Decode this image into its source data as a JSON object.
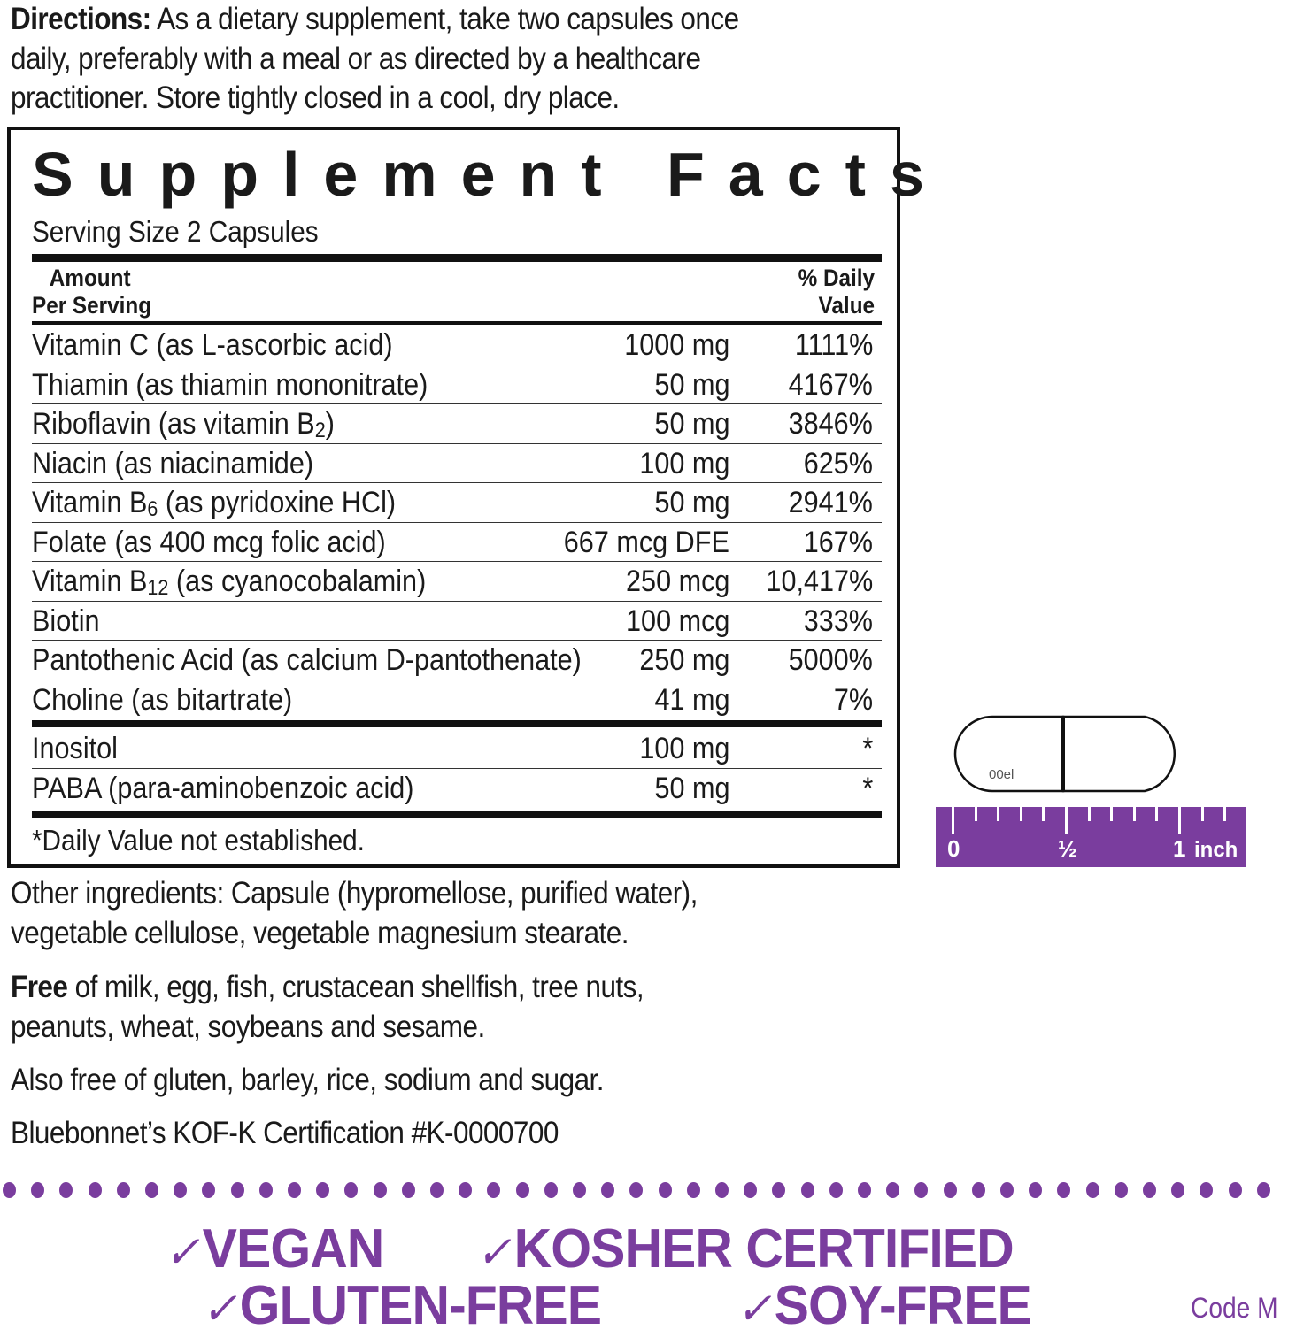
{
  "directions": {
    "label": "Directions:",
    "text_line1": " As a dietary supplement, take two capsules once",
    "text_line2": "daily, preferably with a meal or as directed by a healthcare",
    "text_line3": "practitioner. Store tightly closed in a cool, dry place."
  },
  "facts": {
    "title": "Supplement Facts",
    "serving_size": "Serving Size 2 Capsules",
    "header_amount_1": "Amount",
    "header_amount_2": "Per Serving",
    "header_dv_1": "% Daily",
    "header_dv_2": "Value",
    "rows": [
      {
        "pre": "Vitamin C (as L-ascorbic acid)",
        "sub": "",
        "post": "",
        "amount": "1000 mg",
        "dv": "1111%"
      },
      {
        "pre": "Thiamin (as thiamin mononitrate)",
        "sub": "",
        "post": "",
        "amount": "50 mg",
        "dv": "4167%"
      },
      {
        "pre": "Riboflavin (as vitamin B",
        "sub": "2",
        "post": ")",
        "amount": "50 mg",
        "dv": "3846%"
      },
      {
        "pre": "Niacin (as niacinamide)",
        "sub": "",
        "post": "",
        "amount": "100 mg",
        "dv": "625%"
      },
      {
        "pre": "Vitamin B",
        "sub": "6",
        "post": " (as pyridoxine HCl)",
        "amount": "50 mg",
        "dv": "2941%"
      },
      {
        "pre": "Folate (as 400 mcg folic acid)",
        "sub": "",
        "post": "",
        "amount": "667 mcg DFE",
        "dv": "167%"
      },
      {
        "pre": "Vitamin B",
        "sub": "12",
        "post": " (as cyanocobalamin)",
        "amount": "250 mcg",
        "dv": "10,417%"
      },
      {
        "pre": "Biotin",
        "sub": "",
        "post": "",
        "amount": "100 mcg",
        "dv": "333%"
      },
      {
        "pre": "Pantothenic Acid (as calcium D-pantothenate)",
        "sub": "",
        "post": "",
        "amount": "250 mg",
        "dv": "5000%"
      },
      {
        "pre": "Choline (as bitartrate)",
        "sub": "",
        "post": "",
        "amount": "41 mg",
        "dv": "7%"
      }
    ],
    "rows2": [
      {
        "pre": "Inositol",
        "amount": "100 mg",
        "dv": "*"
      },
      {
        "pre": "PABA (para-aminobenzoic acid)",
        "amount": "50 mg",
        "dv": "*"
      }
    ],
    "footnote": "*Daily Value not established."
  },
  "capsule": {
    "label": "00el"
  },
  "ruler": {
    "zero": "0",
    "half": "½",
    "one": "1",
    "unit": "inch"
  },
  "other_ingredients": {
    "line1": "Other ingredients: Capsule (hypromellose, purified water),",
    "line2": "vegetable cellulose, vegetable magnesium stearate."
  },
  "allergen": {
    "bold": "Free",
    "line1": " of milk, egg, fish, crustacean shellfish, tree nuts,",
    "line2": "peanuts, wheat, soybeans and sesame."
  },
  "also_free": "Also free of gluten, barley, rice, sodium and sugar.",
  "certification": "Bluebonnet’s KOF-K Certification #K-0000700",
  "badges": {
    "check": "✓",
    "vegan": "VEGAN",
    "kosher": "KOSHER CERTIFIED",
    "gluten": "GLUTEN-FREE",
    "soy": "SOY-FREE"
  },
  "code": "Code M",
  "colors": {
    "accent": "#7a3d9e",
    "text": "#1a1a1a"
  }
}
